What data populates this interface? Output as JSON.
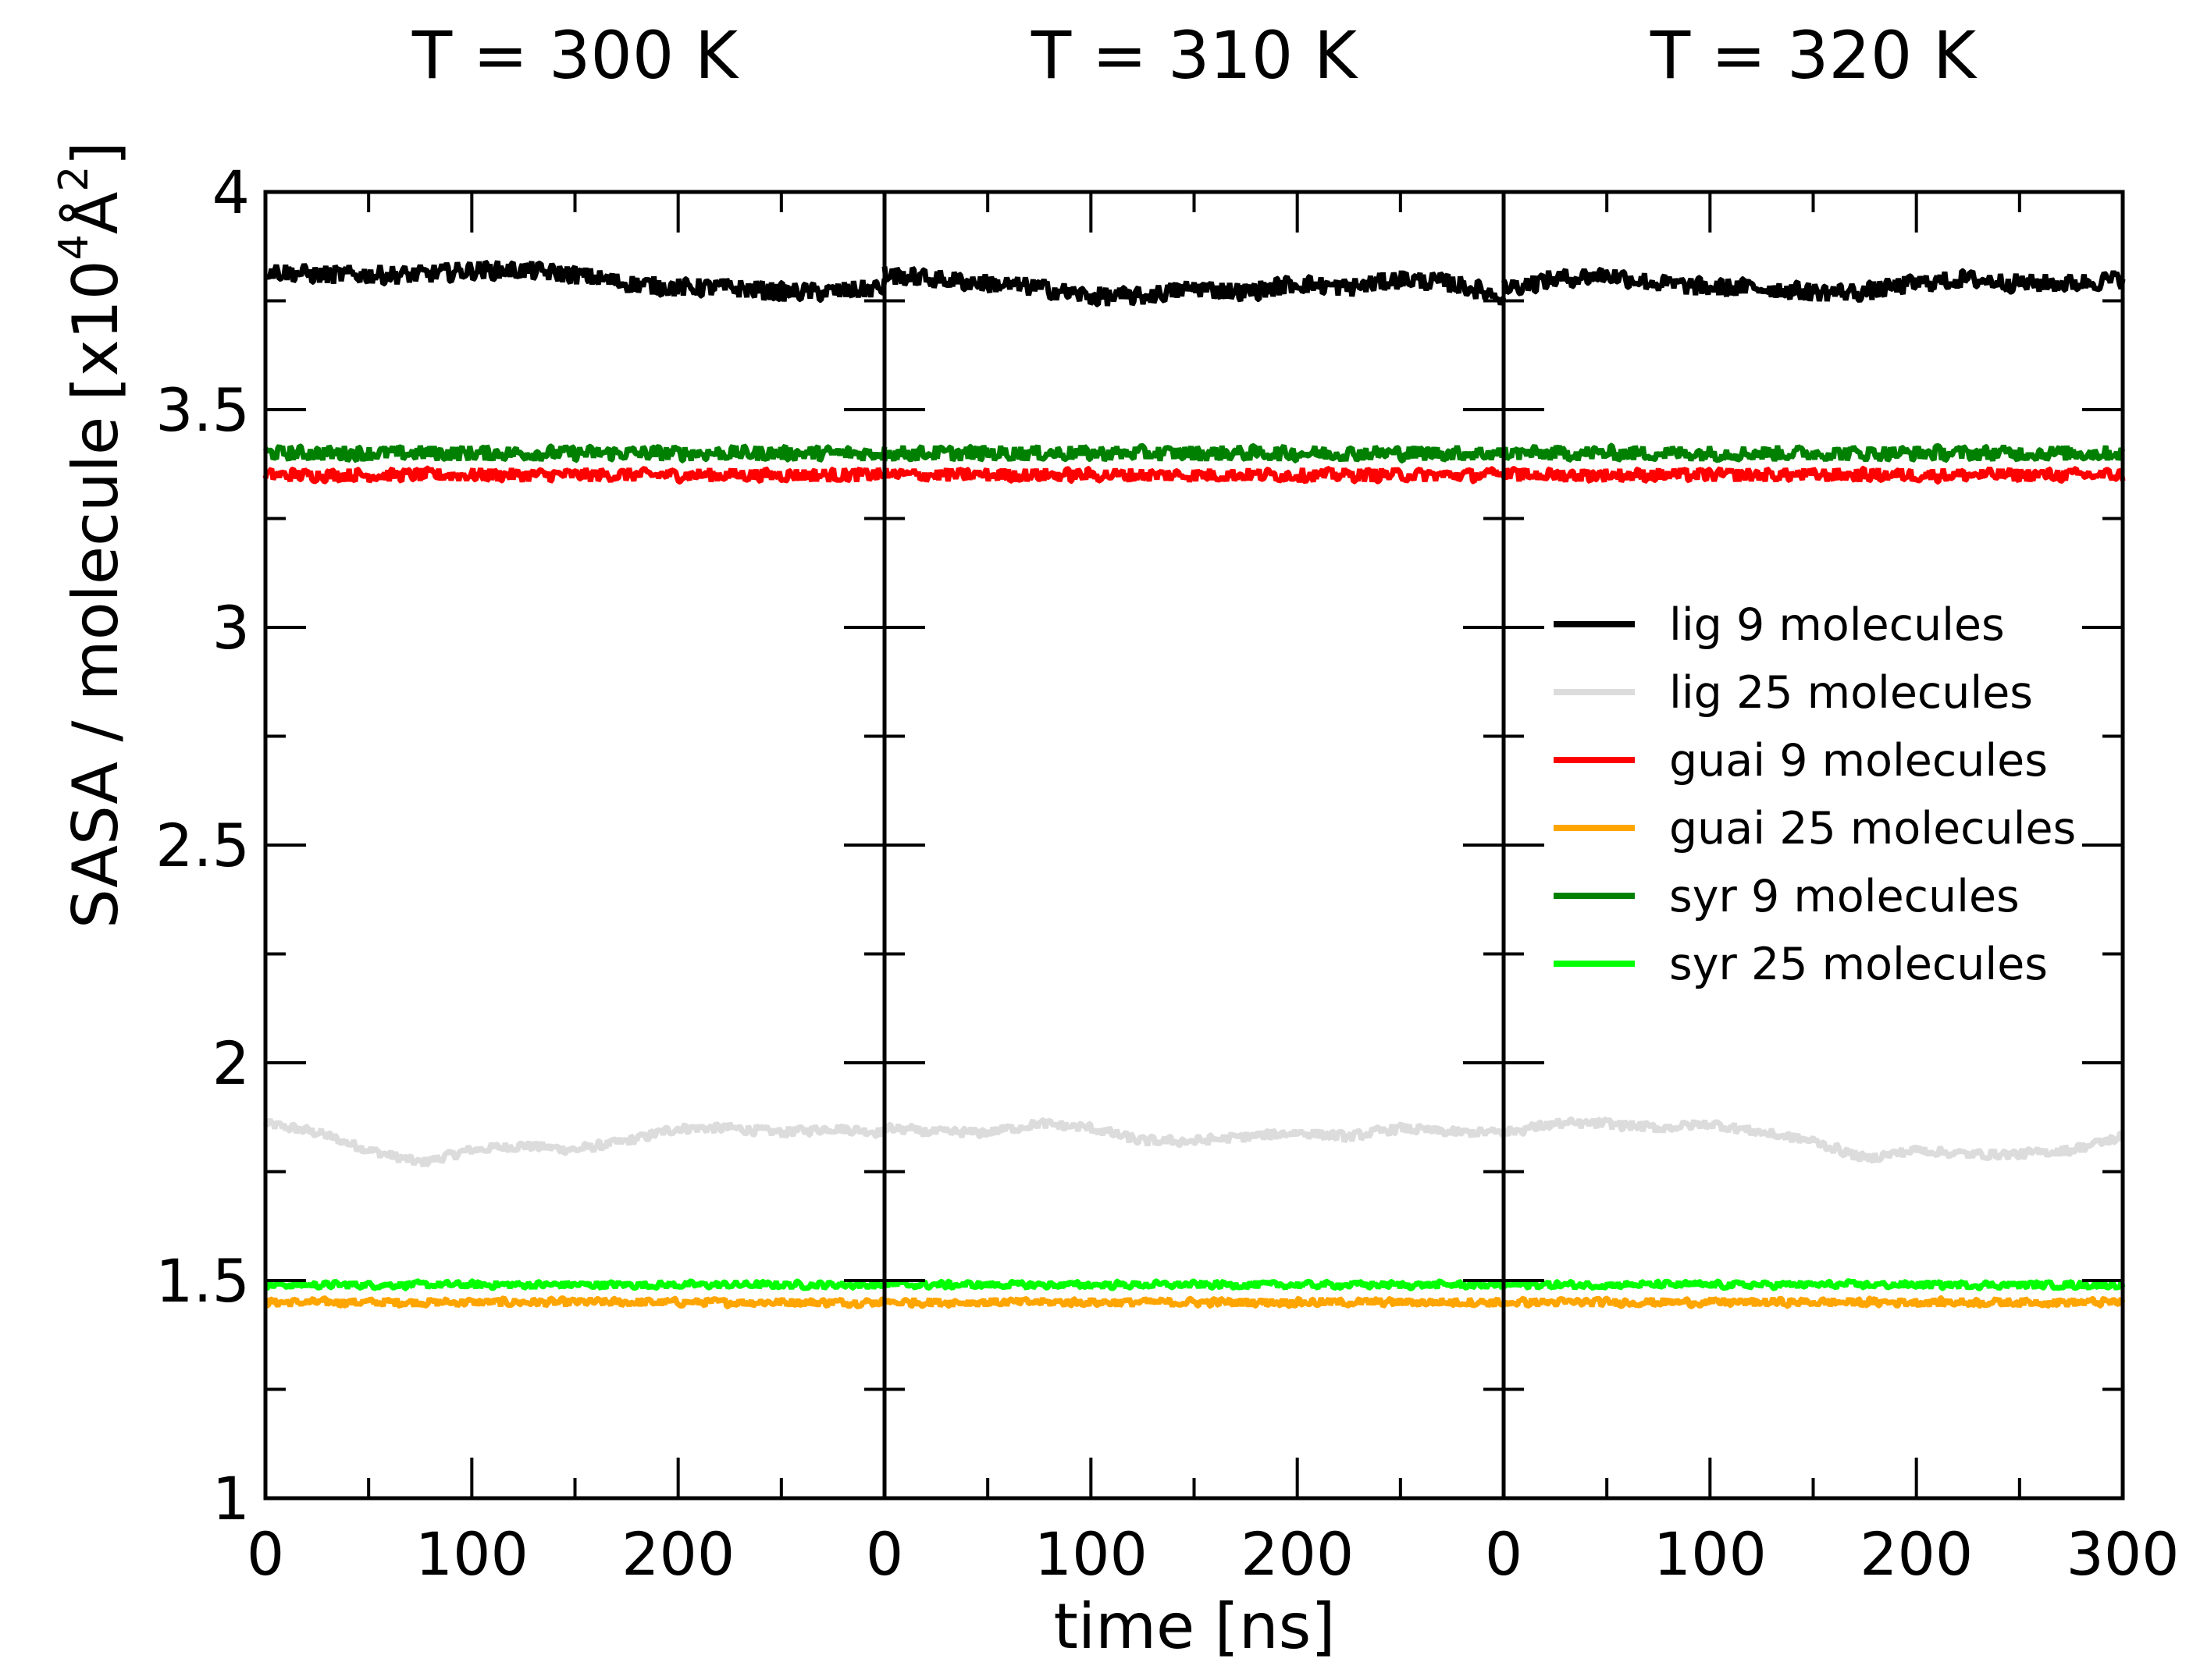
{
  "chart_data": {
    "type": "line",
    "ylabel": "SASA / molecule",
    "ylabel_unit": "[x10",
    "ylabel_exp": "4",
    "ylabel_unit_symbol": "Å",
    "ylabel_unit_exp": "2",
    "ylabel_close": "]",
    "xlabel": "time [ns]",
    "ylim": [
      1,
      4
    ],
    "yticks": [
      1,
      1.5,
      2,
      2.5,
      3,
      3.5,
      4
    ],
    "ytick_labels": [
      "1",
      "1.5",
      "2",
      "2.5",
      "3",
      "3.5",
      "4"
    ],
    "xlim": [
      0,
      300
    ],
    "xticks": [
      0,
      100,
      200
    ],
    "xtick_labels": [
      "0",
      "100",
      "200"
    ],
    "last_xtick_label": "300",
    "grid": false,
    "legend_position": "right",
    "panels": [
      {
        "title": "T = 300 K",
        "series": [
          {
            "name": "lig 9 molecules",
            "color": "#000000",
            "x": [
              0,
              25,
              50,
              75,
              100,
              125,
              150,
              175,
              200,
              225,
              250,
              275,
              300
            ],
            "values": [
              3.82,
              3.81,
              3.81,
              3.81,
              3.82,
              3.82,
              3.81,
              3.79,
              3.78,
              3.78,
              3.77,
              3.77,
              3.78
            ]
          },
          {
            "name": "lig 25 molecules",
            "color": "#dcdcdc",
            "x": [
              0,
              25,
              50,
              75,
              100,
              125,
              150,
              175,
              200,
              225,
              250,
              275,
              300
            ],
            "values": [
              1.86,
              1.84,
              1.8,
              1.77,
              1.8,
              1.81,
              1.8,
              1.82,
              1.85,
              1.85,
              1.84,
              1.85,
              1.84
            ]
          },
          {
            "name": "guai 9 molecules",
            "color": "#ff0000",
            "x": [
              0,
              50,
              100,
              150,
              200,
              250,
              300
            ],
            "values": [
              3.35,
              3.35,
              3.35,
              3.35,
              3.35,
              3.35,
              3.35
            ]
          },
          {
            "name": "guai 25 molecules",
            "color": "#ffa500",
            "x": [
              0,
              50,
              100,
              150,
              200,
              250,
              300
            ],
            "values": [
              1.45,
              1.45,
              1.45,
              1.45,
              1.45,
              1.45,
              1.45
            ]
          },
          {
            "name": "syr 9 molecules",
            "color": "#008000",
            "x": [
              0,
              50,
              100,
              150,
              200,
              250,
              300
            ],
            "values": [
              3.4,
              3.4,
              3.4,
              3.4,
              3.4,
              3.4,
              3.4
            ]
          },
          {
            "name": "syr 25 molecules",
            "color": "#00ff00",
            "x": [
              0,
              50,
              100,
              150,
              200,
              250,
              300
            ],
            "values": [
              1.49,
              1.49,
              1.49,
              1.49,
              1.49,
              1.49,
              1.49
            ]
          }
        ]
      },
      {
        "title": "T = 310 K",
        "series": [
          {
            "name": "lig 9 molecules",
            "color": "#000000",
            "x": [
              0,
              25,
              50,
              75,
              100,
              125,
              150,
              175,
              200,
              225,
              250,
              275,
              300
            ],
            "values": [
              3.81,
              3.8,
              3.79,
              3.78,
              3.76,
              3.76,
              3.78,
              3.77,
              3.79,
              3.78,
              3.8,
              3.79,
              3.76
            ]
          },
          {
            "name": "lig 25 molecules",
            "color": "#dcdcdc",
            "x": [
              0,
              25,
              50,
              75,
              100,
              125,
              150,
              175,
              200,
              225,
              250,
              275,
              300
            ],
            "values": [
              1.85,
              1.84,
              1.84,
              1.86,
              1.85,
              1.82,
              1.82,
              1.83,
              1.84,
              1.83,
              1.85,
              1.84,
              1.84
            ]
          },
          {
            "name": "guai 9 molecules",
            "color": "#ff0000",
            "x": [
              0,
              50,
              100,
              150,
              200,
              250,
              300
            ],
            "values": [
              3.35,
              3.35,
              3.35,
              3.35,
              3.35,
              3.35,
              3.35
            ]
          },
          {
            "name": "guai 25 molecules",
            "color": "#ffa500",
            "x": [
              0,
              50,
              100,
              150,
              200,
              250,
              300
            ],
            "values": [
              1.45,
              1.45,
              1.45,
              1.45,
              1.45,
              1.45,
              1.45
            ]
          },
          {
            "name": "syr 9 molecules",
            "color": "#008000",
            "x": [
              0,
              50,
              100,
              150,
              200,
              250,
              300
            ],
            "values": [
              3.4,
              3.4,
              3.4,
              3.4,
              3.4,
              3.4,
              3.4
            ]
          },
          {
            "name": "syr 25 molecules",
            "color": "#00ff00",
            "x": [
              0,
              50,
              100,
              150,
              200,
              250,
              300
            ],
            "values": [
              1.49,
              1.49,
              1.49,
              1.49,
              1.49,
              1.49,
              1.49
            ]
          }
        ]
      },
      {
        "title": "T = 320 K",
        "series": [
          {
            "name": "lig 9 molecules",
            "color": "#000000",
            "x": [
              0,
              25,
              50,
              75,
              100,
              125,
              150,
              175,
              200,
              225,
              250,
              275,
              300
            ],
            "values": [
              3.78,
              3.8,
              3.81,
              3.79,
              3.78,
              3.78,
              3.77,
              3.77,
              3.79,
              3.8,
              3.79,
              3.79,
              3.8
            ]
          },
          {
            "name": "lig 25 molecules",
            "color": "#dcdcdc",
            "x": [
              0,
              25,
              50,
              75,
              100,
              125,
              150,
              175,
              200,
              225,
              250,
              275,
              300
            ],
            "values": [
              1.84,
              1.86,
              1.86,
              1.85,
              1.86,
              1.84,
              1.82,
              1.78,
              1.8,
              1.79,
              1.79,
              1.8,
              1.83
            ]
          },
          {
            "name": "guai 9 molecules",
            "color": "#ff0000",
            "x": [
              0,
              50,
              100,
              150,
              200,
              250,
              300
            ],
            "values": [
              3.35,
              3.35,
              3.35,
              3.35,
              3.35,
              3.35,
              3.35
            ]
          },
          {
            "name": "guai 25 molecules",
            "color": "#ffa500",
            "x": [
              0,
              50,
              100,
              150,
              200,
              250,
              300
            ],
            "values": [
              1.45,
              1.45,
              1.45,
              1.45,
              1.45,
              1.45,
              1.45
            ]
          },
          {
            "name": "syr 9 molecules",
            "color": "#008000",
            "x": [
              0,
              50,
              100,
              150,
              200,
              250,
              300
            ],
            "values": [
              3.4,
              3.4,
              3.4,
              3.4,
              3.4,
              3.4,
              3.4
            ]
          },
          {
            "name": "syr 25 molecules",
            "color": "#00ff00",
            "x": [
              0,
              50,
              100,
              150,
              200,
              250,
              300
            ],
            "values": [
              1.49,
              1.49,
              1.49,
              1.49,
              1.49,
              1.49,
              1.49
            ]
          }
        ]
      }
    ],
    "legend": [
      {
        "label": "lig 9 molecules",
        "color": "#000000"
      },
      {
        "label": "lig 25 molecules",
        "color": "#dcdcdc"
      },
      {
        "label": "guai 9 molecules",
        "color": "#ff0000"
      },
      {
        "label": "guai 25 molecules",
        "color": "#ffa500"
      },
      {
        "label": "syr 9 molecules",
        "color": "#008000"
      },
      {
        "label": "syr 25 molecules",
        "color": "#00ff00"
      }
    ]
  }
}
